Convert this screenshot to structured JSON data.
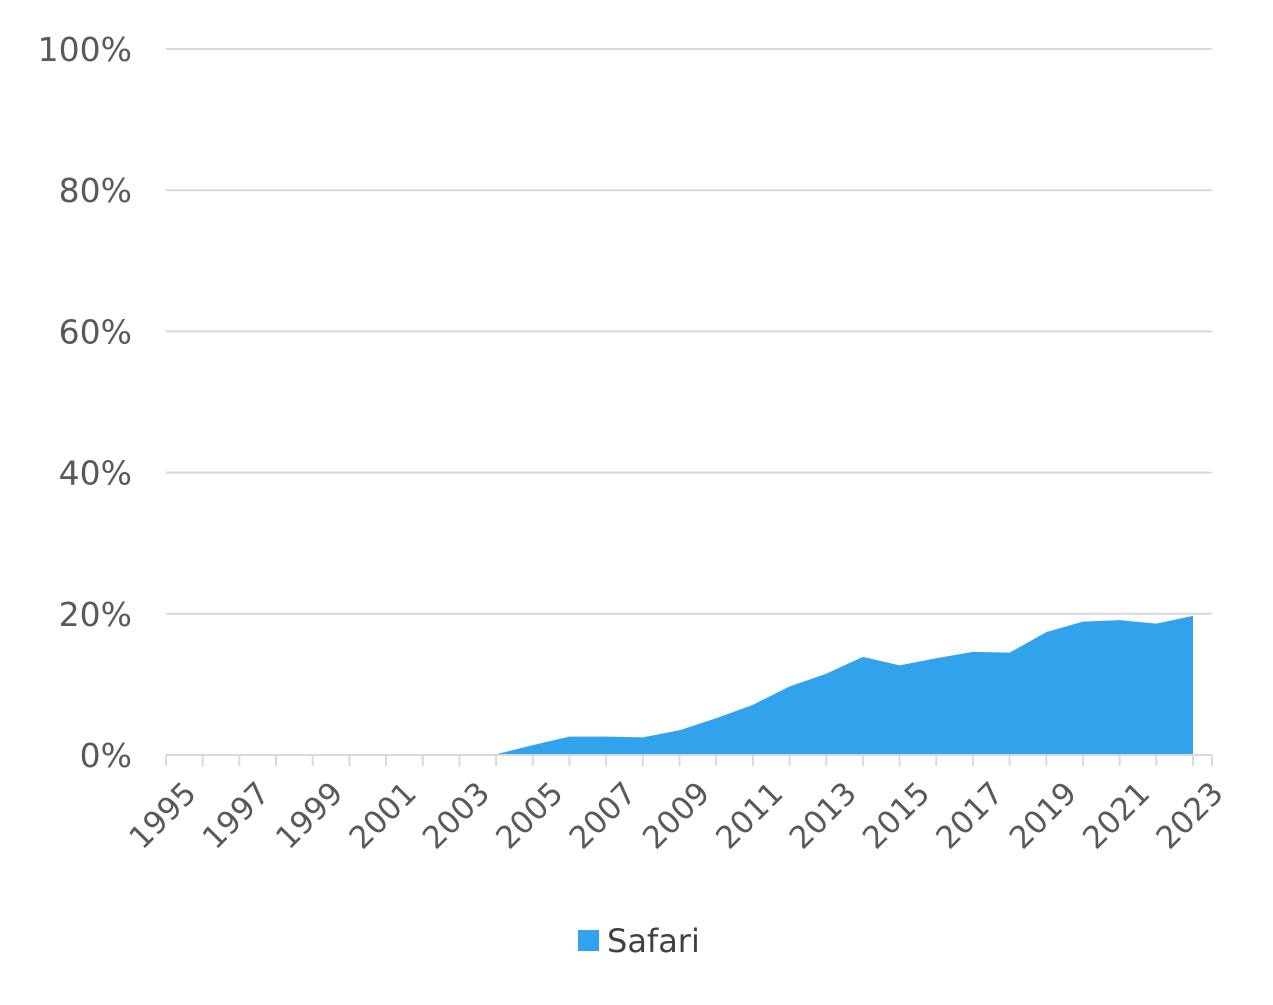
{
  "chart_data": {
    "type": "area",
    "x": [
      1995,
      1996,
      1997,
      1998,
      1999,
      2000,
      2001,
      2002,
      2003,
      2004,
      2005,
      2006,
      2007,
      2008,
      2009,
      2010,
      2011,
      2012,
      2013,
      2014,
      2015,
      2016,
      2017,
      2018,
      2019,
      2020,
      2021,
      2022,
      2023
    ],
    "series": [
      {
        "name": "Safari",
        "color": "#31a2ec",
        "values": [
          0,
          0,
          0,
          0,
          0,
          0,
          0,
          0,
          0,
          0.1,
          1.4,
          2.6,
          2.6,
          2.5,
          3.5,
          5.2,
          7.1,
          9.7,
          11.5,
          13.9,
          12.7,
          13.7,
          14.6,
          14.5,
          17.4,
          18.9,
          19.1,
          18.6,
          19.7
        ]
      }
    ],
    "x_tick_labels": [
      "1995",
      "1997",
      "1999",
      "2001",
      "2003",
      "2005",
      "2007",
      "2009",
      "2011",
      "2013",
      "2015",
      "2017",
      "2019",
      "2021",
      "2023"
    ],
    "y_tick_labels": [
      "0%",
      "20%",
      "40%",
      "60%",
      "80%",
      "100%"
    ],
    "y_ticks": [
      0,
      20,
      40,
      60,
      80,
      100
    ],
    "ylim": [
      0,
      100
    ],
    "title": "",
    "xlabel": "",
    "ylabel": "",
    "grid": true,
    "legend_position": "bottom"
  },
  "legend": {
    "label": "Safari"
  }
}
